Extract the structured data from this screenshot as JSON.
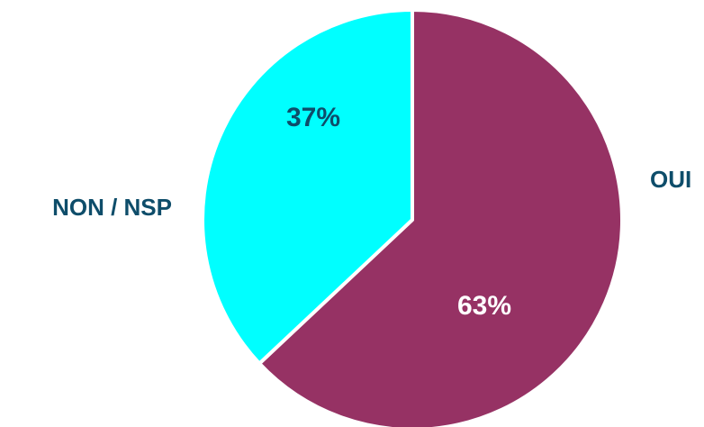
{
  "chart_data": {
    "type": "pie",
    "title": "",
    "labels": [
      "OUI",
      "NON / NSP"
    ],
    "values": [
      63,
      37
    ],
    "value_labels": [
      "63%",
      "37%"
    ],
    "colors": [
      "#963264",
      "#00FFFF"
    ],
    "value_label_colors": [
      "#ffffff",
      "#0E4D6A"
    ],
    "category_label_color": "#0E4D6A",
    "start_angle_deg": 0,
    "direction": "clockwise",
    "legend": "none"
  }
}
